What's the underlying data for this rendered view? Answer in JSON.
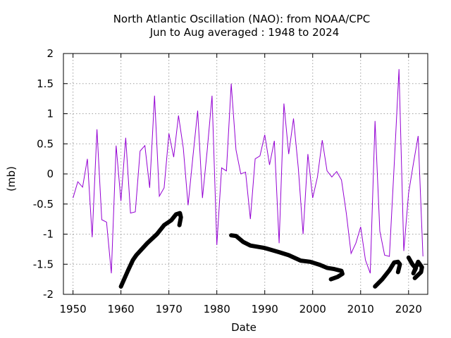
{
  "chart_data": {
    "type": "line",
    "title": "North Atlantic Oscillation (NAO): from NOAA/CPC",
    "subtitle": "Jun to Aug averaged : 1948 to 2024",
    "xlabel": "Date",
    "ylabel": "(mb)",
    "xlim": [
      1948,
      2024
    ],
    "ylim": [
      -2,
      2
    ],
    "xticks": [
      1950,
      1960,
      1970,
      1980,
      1990,
      2000,
      2010,
      2020
    ],
    "yticks": [
      -2,
      -1.5,
      -1,
      -0.5,
      0,
      0.5,
      1,
      1.5,
      2
    ],
    "ytick_labels": [
      "-2",
      "-1.5",
      "-1",
      "-0.5",
      "0",
      "0.5",
      "1",
      "1.5",
      "2"
    ],
    "grid": true,
    "colors": {
      "series": "#9400d3",
      "annotation": "#000000",
      "grid": "#a0a0a0"
    },
    "series": [
      {
        "x": [
          1950,
          1951,
          1952,
          1953,
          1954,
          1955,
          1956,
          1957,
          1958,
          1959,
          1960,
          1961,
          1962,
          1963,
          1964,
          1965,
          1966,
          1967,
          1968,
          1969,
          1970,
          1971,
          1972,
          1973,
          1974,
          1975,
          1976,
          1977,
          1978,
          1979,
          1980,
          1981,
          1982,
          1983,
          1984,
          1985,
          1986,
          1987,
          1988,
          1989,
          1990,
          1991,
          1992,
          1993,
          1994,
          1995,
          1996,
          1997,
          1998,
          1999,
          2000,
          2001,
          2002,
          2003,
          2004,
          2005,
          2006,
          2007,
          2008,
          2009,
          2010,
          2011,
          2012,
          2013,
          2014,
          2015,
          2016,
          2017,
          2018,
          2019,
          2020,
          2021,
          2022,
          2023
        ],
        "y": [
          -0.4,
          -0.13,
          -0.22,
          0.25,
          -1.05,
          0.74,
          -0.76,
          -0.8,
          -1.65,
          0.47,
          -0.45,
          0.6,
          -0.65,
          -0.63,
          0.38,
          0.47,
          -0.23,
          1.3,
          -0.37,
          -0.23,
          0.67,
          0.28,
          0.97,
          0.43,
          -0.52,
          0.28,
          1.05,
          -0.4,
          0.4,
          1.3,
          -1.18,
          0.1,
          0.05,
          1.5,
          0.4,
          0.0,
          0.03,
          -0.75,
          0.25,
          0.3,
          0.65,
          0.15,
          0.55,
          -1.15,
          1.17,
          0.33,
          0.92,
          0.1,
          -1.0,
          0.33,
          -0.4,
          -0.05,
          0.56,
          0.05,
          -0.05,
          0.04,
          -0.1,
          -0.65,
          -1.32,
          -1.15,
          -0.88,
          -1.43,
          -1.65,
          0.88,
          -0.95,
          -1.35,
          -1.37,
          0.15,
          1.74,
          -1.28,
          -0.32,
          0.17,
          0.63,
          -1.37
        ]
      }
    ],
    "annotations": [
      {
        "type": "hand-drawn-arrow",
        "points": [
          [
            1960.0,
            -1.87
          ],
          [
            1961.5,
            -1.6
          ],
          [
            1962.5,
            -1.43
          ],
          [
            1963.2,
            -1.35
          ],
          [
            1965.5,
            -1.15
          ],
          [
            1967.5,
            -1.0
          ],
          [
            1969.0,
            -0.85
          ],
          [
            1970.5,
            -0.77
          ],
          [
            1971.5,
            -0.67
          ],
          [
            1972.3,
            -0.65
          ],
          [
            1972.5,
            -0.72
          ],
          [
            1972.2,
            -0.85
          ]
        ]
      },
      {
        "type": "hand-drawn-arrow",
        "points": [
          [
            1983.0,
            -1.02
          ],
          [
            1984.0,
            -1.03
          ],
          [
            1985.5,
            -1.13
          ],
          [
            1987.0,
            -1.19
          ],
          [
            1990.0,
            -1.23
          ],
          [
            1993.0,
            -1.3
          ],
          [
            1995.0,
            -1.35
          ],
          [
            1997.5,
            -1.44
          ],
          [
            1999.5,
            -1.46
          ],
          [
            2001.5,
            -1.51
          ],
          [
            2003.0,
            -1.56
          ],
          [
            2004.5,
            -1.58
          ],
          [
            2006.0,
            -1.61
          ],
          [
            2006.2,
            -1.66
          ],
          [
            2005.2,
            -1.71
          ],
          [
            2003.8,
            -1.75
          ]
        ]
      },
      {
        "type": "hand-drawn-arrow",
        "points": [
          [
            2013.0,
            -1.87
          ],
          [
            2014.5,
            -1.75
          ],
          [
            2016.0,
            -1.6
          ],
          [
            2017.0,
            -1.47
          ],
          [
            2017.8,
            -1.46
          ],
          [
            2018.2,
            -1.5
          ],
          [
            2017.8,
            -1.63
          ]
        ]
      },
      {
        "type": "hand-drawn-arrow",
        "points": [
          [
            2020.0,
            -1.39
          ],
          [
            2020.8,
            -1.5
          ],
          [
            2021.5,
            -1.57
          ],
          [
            2021.0,
            -1.65
          ],
          [
            2022.0,
            -1.46
          ],
          [
            2022.8,
            -1.55
          ],
          [
            2022.6,
            -1.63
          ],
          [
            2021.3,
            -1.73
          ]
        ]
      }
    ]
  }
}
